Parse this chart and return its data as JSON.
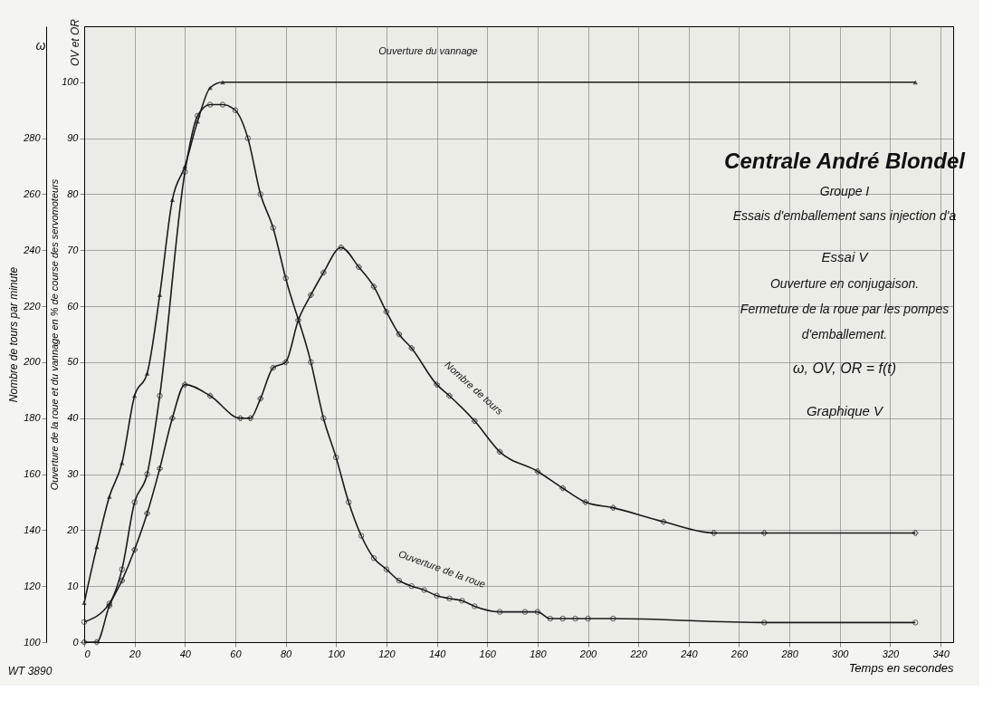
{
  "chart_data": {
    "type": "line",
    "title": "Centrale André Blondel",
    "subtitle": "Groupe I",
    "xlabel": "Temps en secondes",
    "ylabel": "Nombre de tours par minute",
    "y2label": "Ouverture de la roue et du vannage en % de course des servomoteurs",
    "annotations": [
      "ω",
      "OV et OR",
      "Essais d'emballement sans injection d'a",
      "Essai V",
      "Ouverture en conjugaison.",
      "Fermeture de la roue par les pompes",
      "d'emballement.",
      "ω, OV, OR = f(t)",
      "Graphique V",
      "WT 3890"
    ],
    "xlim": [
      0,
      345
    ],
    "xticks": [
      0,
      20,
      40,
      60,
      80,
      100,
      120,
      140,
      160,
      180,
      200,
      220,
      240,
      260,
      280,
      300,
      320,
      340
    ],
    "ylim": [
      100,
      320
    ],
    "yticks": [
      100,
      120,
      140,
      160,
      180,
      200,
      220,
      240,
      260,
      280
    ],
    "y2lim": [
      0,
      110
    ],
    "y2ticks": [
      0,
      10,
      20,
      30,
      40,
      50,
      60,
      70,
      80,
      90,
      100
    ],
    "grid": true,
    "line_style": "solid",
    "series": [
      {
        "name": "Ouverture du vannage",
        "color": "#1a1a1a",
        "axis": "y2",
        "marker": "triangle",
        "x": [
          0,
          5,
          10,
          15,
          20,
          25,
          30,
          35,
          40,
          45,
          50,
          55,
          330
        ],
        "values": [
          7,
          17,
          26,
          32,
          44,
          48,
          62,
          79,
          85,
          93,
          99,
          100,
          100
        ]
      },
      {
        "name": "Nombre de tours",
        "color": "#1a1a1a",
        "axis": "y",
        "marker": "cross",
        "x": [
          0,
          5,
          10,
          15,
          20,
          25,
          30,
          35,
          40,
          50,
          62,
          66,
          70,
          75,
          80,
          85,
          90,
          95,
          102,
          109,
          115,
          120,
          125,
          130,
          140,
          145,
          155,
          165,
          180,
          190,
          199,
          210,
          230,
          250,
          270,
          330
        ],
        "values": [
          100,
          100,
          113,
          122,
          133,
          146,
          162,
          180,
          192,
          188,
          180,
          180,
          187,
          198,
          200,
          215,
          224,
          232,
          241,
          234,
          227,
          218,
          210,
          205,
          192,
          188,
          179,
          168,
          161,
          155,
          150,
          148,
          143,
          139,
          139,
          139
        ]
      },
      {
        "name": "Ouverture de la roue",
        "color": "#1a1a1a",
        "axis": "y2",
        "marker": "circle",
        "x": [
          0,
          10,
          15,
          20,
          25,
          30,
          40,
          45,
          50,
          55,
          60,
          65,
          70,
          75,
          80,
          90,
          95,
          100,
          105,
          110,
          115,
          120,
          125,
          130,
          135,
          140,
          145,
          150,
          155,
          165,
          175,
          180,
          185,
          190,
          195,
          200,
          210,
          270,
          330
        ],
        "values": [
          3.6,
          6.9,
          13,
          25,
          30,
          44,
          84,
          94,
          96,
          96,
          95,
          90,
          80,
          74,
          65,
          50,
          40,
          33,
          25,
          19,
          15,
          13,
          11,
          10,
          9.3,
          8.3,
          7.8,
          7.4,
          6.4,
          5.4,
          5.4,
          5.4,
          4.2,
          4.2,
          4.2,
          4.2,
          4.2,
          3.5,
          3.5
        ]
      }
    ]
  }
}
